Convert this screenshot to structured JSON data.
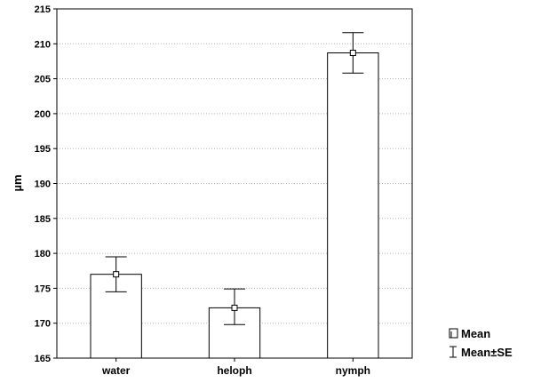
{
  "chart_data": {
    "type": "bar",
    "categories": [
      "water",
      "heloph",
      "nymph"
    ],
    "series": [
      {
        "name": "Mean",
        "values": [
          177.0,
          172.2,
          208.7
        ],
        "error_low": [
          174.5,
          169.8,
          205.8
        ],
        "error_high": [
          179.5,
          174.9,
          211.6
        ]
      }
    ],
    "title": "",
    "xlabel": "",
    "ylabel": "µm",
    "ylim": [
      165,
      215
    ],
    "yticks": [
      165,
      170,
      175,
      180,
      185,
      190,
      195,
      200,
      205,
      210,
      215
    ],
    "grid": true,
    "legend": {
      "placement": "bottom-right",
      "items": [
        {
          "label": "Mean",
          "icon": "square-marker"
        },
        {
          "label": "Mean±SE",
          "icon": "error-bar"
        }
      ]
    },
    "colors": {
      "bar_fill": "#ffffff",
      "bar_stroke": "#000000",
      "grid": "#b4b4b4"
    }
  }
}
